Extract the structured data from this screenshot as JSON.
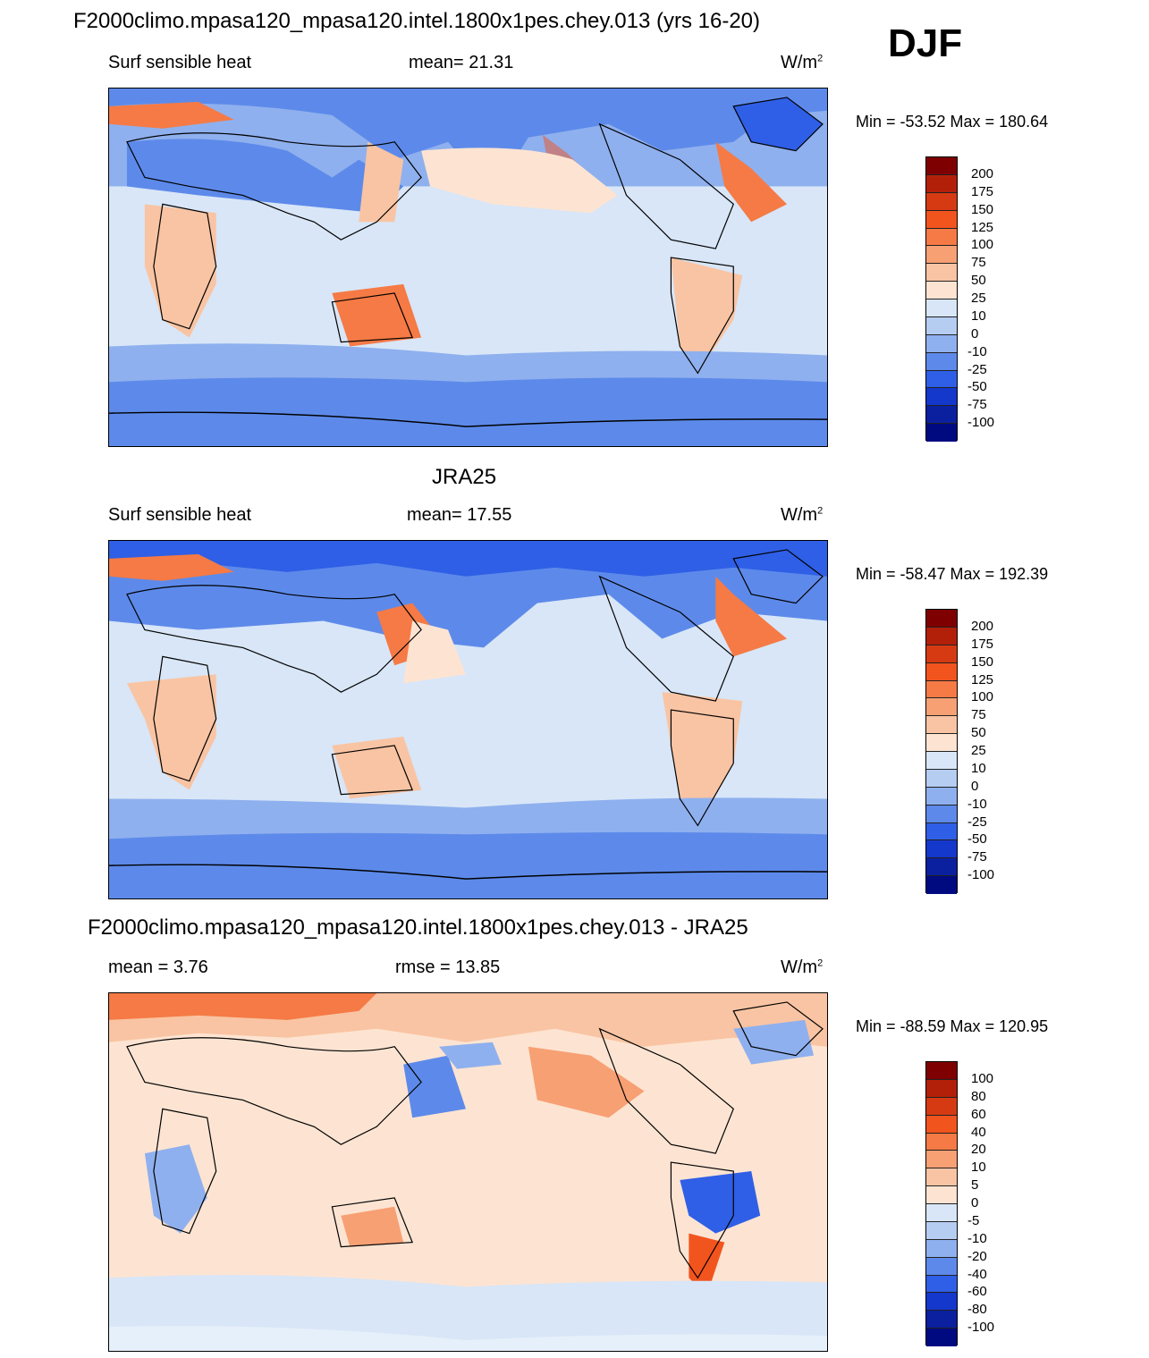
{
  "header": {
    "title": "F2000climo.mpasa120_mpasa120.intel.1800x1pes.chey.013 (yrs 16-20)",
    "season": "DJF"
  },
  "panels": [
    {
      "title": "",
      "left_label": "Surf sensible heat",
      "mid_label": "mean=  21.31",
      "units": "W/m",
      "units_sup": "2",
      "minmax": "Min = -53.52 Max = 180.64",
      "colorbar_ticks": [
        "200",
        "175",
        "150",
        "125",
        "100",
        "75",
        "50",
        "25",
        "10",
        "0",
        "-10",
        "-25",
        "-50",
        "-75",
        "-100"
      ]
    },
    {
      "title": "JRA25",
      "left_label": "Surf sensible heat",
      "mid_label": "mean=  17.55",
      "units": "W/m",
      "units_sup": "2",
      "minmax": "Min = -58.47 Max = 192.39",
      "colorbar_ticks": [
        "200",
        "175",
        "150",
        "125",
        "100",
        "75",
        "50",
        "25",
        "10",
        "0",
        "-10",
        "-25",
        "-50",
        "-75",
        "-100"
      ]
    },
    {
      "title": "F2000climo.mpasa120_mpasa120.intel.1800x1pes.chey.013 - JRA25",
      "left_label": "mean =   3.76",
      "mid_label": "rmse =  13.85",
      "units": "W/m",
      "units_sup": "2",
      "minmax": "Min = -88.59 Max = 120.95",
      "colorbar_ticks": [
        "100",
        "80",
        "60",
        "40",
        "20",
        "10",
        "5",
        "0",
        "-5",
        "-10",
        "-20",
        "-40",
        "-60",
        "-80",
        "-100"
      ]
    }
  ],
  "colorbar_colors": [
    "#7f0000",
    "#b3200a",
    "#d63a12",
    "#f2541e",
    "#f57a45",
    "#f7a074",
    "#f9c4a3",
    "#fde4d2",
    "#d8e6f7",
    "#b6cdf2",
    "#8fb0ee",
    "#5d8aea",
    "#2f5fe6",
    "#1437cc",
    "#0a209e",
    "#000a80"
  ]
}
